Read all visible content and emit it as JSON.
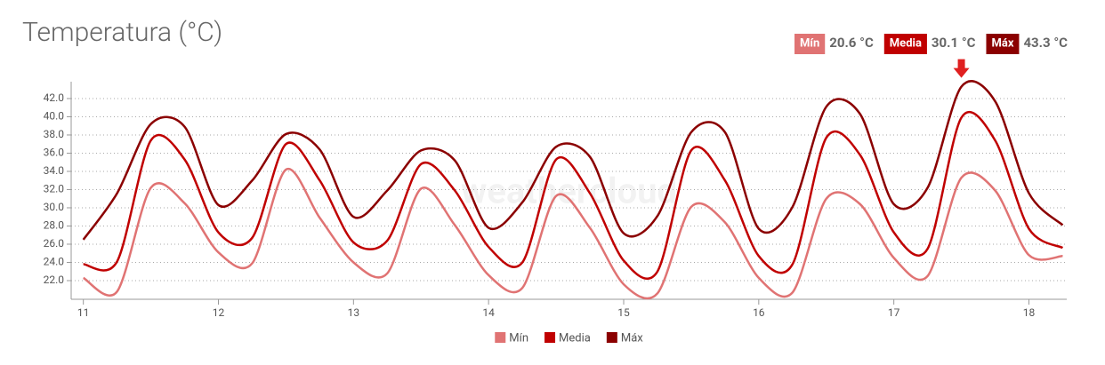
{
  "chart_data": {
    "type": "line",
    "title": "Temperatura (°C)",
    "watermark": "weathercloud",
    "stats": [
      {
        "name": "Mín",
        "text": "20.6 °C",
        "color": "#e07373"
      },
      {
        "name": "Media",
        "text": "30.1 °C",
        "color": "#c00000"
      },
      {
        "name": "Máx",
        "text": "43.3 °C",
        "color": "#8b0000"
      }
    ],
    "x": [
      11,
      11.25,
      11.5,
      11.75,
      12,
      12.25,
      12.5,
      12.75,
      13,
      13.25,
      13.5,
      13.75,
      14,
      14.25,
      14.5,
      14.75,
      15,
      15.25,
      15.5,
      15.75,
      16,
      16.25,
      16.5,
      16.75,
      17,
      17.25,
      17.5,
      17.75,
      18,
      18.25
    ],
    "series": [
      {
        "name": "Mín",
        "color": "#e07373",
        "values": [
          22.3,
          20.8,
          32.2,
          30.5,
          25.1,
          23.9,
          34.2,
          28.9,
          24.0,
          22.8,
          32.1,
          28.1,
          22.6,
          21.2,
          31.3,
          27.8,
          21.6,
          20.6,
          30.1,
          28.4,
          22.3,
          20.7,
          31.0,
          30.4,
          24.5,
          22.5,
          33.3,
          31.9,
          24.8,
          24.7
        ]
      },
      {
        "name": "Media",
        "color": "#c00000",
        "values": [
          23.8,
          24.1,
          37.4,
          35.3,
          27.3,
          26.7,
          37.0,
          33.0,
          26.2,
          26.4,
          34.8,
          31.9,
          25.7,
          24.0,
          35.3,
          31.6,
          24.2,
          23.0,
          36.3,
          33.0,
          24.7,
          23.8,
          37.7,
          35.8,
          27.3,
          25.5,
          39.9,
          37.4,
          27.7,
          25.6
        ]
      },
      {
        "name": "Máx",
        "color": "#8b0000",
        "values": [
          26.5,
          31.6,
          39.2,
          38.9,
          30.3,
          33.0,
          38.1,
          36.4,
          29.0,
          31.9,
          36.3,
          35.2,
          27.8,
          30.6,
          36.7,
          35.6,
          27.2,
          29.1,
          38.3,
          38.3,
          27.7,
          30.1,
          41.1,
          40.3,
          30.4,
          32.2,
          43.3,
          41.7,
          31.6,
          28.1
        ]
      }
    ],
    "xlim": [
      10.91,
      18.28
    ],
    "xticks": [
      11,
      12,
      13,
      14,
      15,
      16,
      17,
      18
    ],
    "ylim": [
      19.95,
      43.85
    ],
    "yticks": [
      {
        "value": 22,
        "label": "22.0"
      },
      {
        "value": 24,
        "label": "24.0"
      },
      {
        "value": 26,
        "label": "26.0"
      },
      {
        "value": 28,
        "label": "28.0"
      },
      {
        "value": 30,
        "label": "30.0"
      },
      {
        "value": 32,
        "label": "32.0"
      },
      {
        "value": 34,
        "label": "34.0"
      },
      {
        "value": 36,
        "label": "36.0"
      },
      {
        "value": 38,
        "label": "38.0"
      },
      {
        "value": 40,
        "label": "40.0"
      },
      {
        "value": 42,
        "label": "42.0"
      }
    ],
    "grid": true
  }
}
